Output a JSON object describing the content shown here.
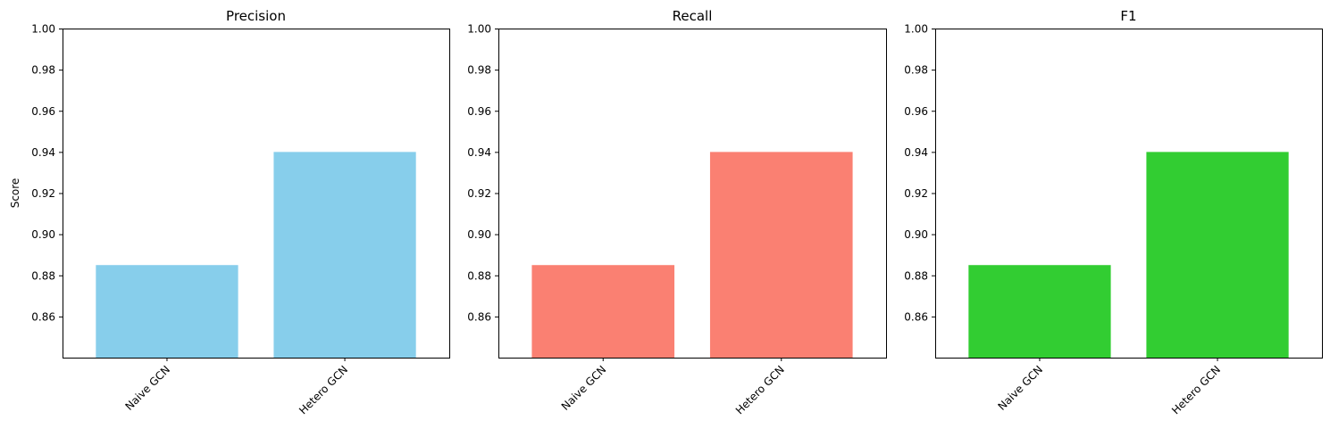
{
  "chart_data": [
    {
      "type": "bar",
      "title": "Precision",
      "categories": [
        "Naive GCN",
        "Hetero GCN"
      ],
      "values": [
        0.885,
        0.94
      ],
      "color": "#87CEEB",
      "ylabel": "Score",
      "xlabel": "",
      "ylim": [
        0.84,
        1.0
      ],
      "yticks": [
        "0.86",
        "0.88",
        "0.90",
        "0.92",
        "0.94",
        "0.96",
        "0.98",
        "1.00"
      ],
      "grid": false
    },
    {
      "type": "bar",
      "title": "Recall",
      "categories": [
        "Naive GCN",
        "Hetero GCN"
      ],
      "values": [
        0.885,
        0.94
      ],
      "color": "#FA8072",
      "ylabel": "",
      "xlabel": "",
      "ylim": [
        0.84,
        1.0
      ],
      "yticks": [
        "0.86",
        "0.88",
        "0.90",
        "0.92",
        "0.94",
        "0.96",
        "0.98",
        "1.00"
      ],
      "grid": false
    },
    {
      "type": "bar",
      "title": "F1",
      "categories": [
        "Naive GCN",
        "Hetero GCN"
      ],
      "values": [
        0.885,
        0.94
      ],
      "color": "#32CD32",
      "ylabel": "",
      "xlabel": "",
      "ylim": [
        0.84,
        1.0
      ],
      "yticks": [
        "0.86",
        "0.88",
        "0.90",
        "0.92",
        "0.94",
        "0.96",
        "0.98",
        "1.00"
      ],
      "grid": false
    }
  ]
}
